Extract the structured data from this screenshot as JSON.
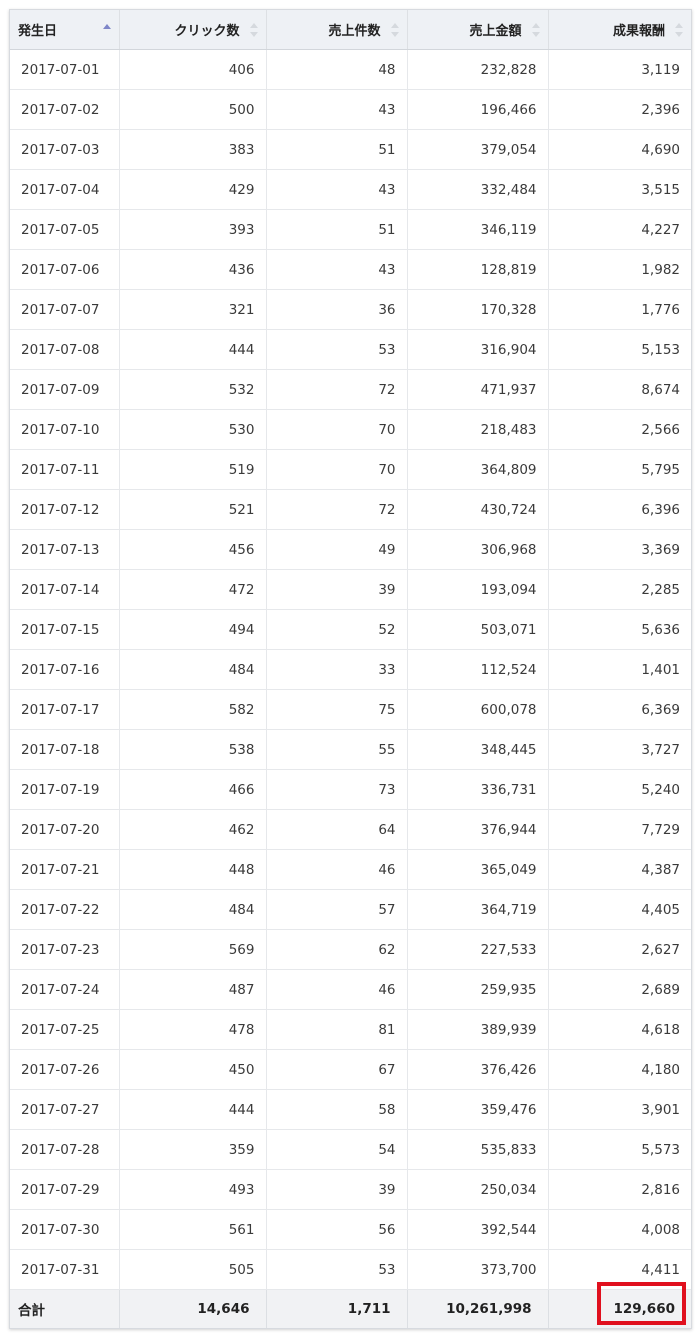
{
  "table": {
    "columns": [
      {
        "label": "発生日",
        "sort": "asc"
      },
      {
        "label": "クリック数",
        "sort": "none"
      },
      {
        "label": "売上件数",
        "sort": "none"
      },
      {
        "label": "売上金額",
        "sort": "none"
      },
      {
        "label": "成果報酬",
        "sort": "none"
      }
    ],
    "rows": [
      [
        "2017-07-01",
        "406",
        "48",
        "232,828",
        "3,119"
      ],
      [
        "2017-07-02",
        "500",
        "43",
        "196,466",
        "2,396"
      ],
      [
        "2017-07-03",
        "383",
        "51",
        "379,054",
        "4,690"
      ],
      [
        "2017-07-04",
        "429",
        "43",
        "332,484",
        "3,515"
      ],
      [
        "2017-07-05",
        "393",
        "51",
        "346,119",
        "4,227"
      ],
      [
        "2017-07-06",
        "436",
        "43",
        "128,819",
        "1,982"
      ],
      [
        "2017-07-07",
        "321",
        "36",
        "170,328",
        "1,776"
      ],
      [
        "2017-07-08",
        "444",
        "53",
        "316,904",
        "5,153"
      ],
      [
        "2017-07-09",
        "532",
        "72",
        "471,937",
        "8,674"
      ],
      [
        "2017-07-10",
        "530",
        "70",
        "218,483",
        "2,566"
      ],
      [
        "2017-07-11",
        "519",
        "70",
        "364,809",
        "5,795"
      ],
      [
        "2017-07-12",
        "521",
        "72",
        "430,724",
        "6,396"
      ],
      [
        "2017-07-13",
        "456",
        "49",
        "306,968",
        "3,369"
      ],
      [
        "2017-07-14",
        "472",
        "39",
        "193,094",
        "2,285"
      ],
      [
        "2017-07-15",
        "494",
        "52",
        "503,071",
        "5,636"
      ],
      [
        "2017-07-16",
        "484",
        "33",
        "112,524",
        "1,401"
      ],
      [
        "2017-07-17",
        "582",
        "75",
        "600,078",
        "6,369"
      ],
      [
        "2017-07-18",
        "538",
        "55",
        "348,445",
        "3,727"
      ],
      [
        "2017-07-19",
        "466",
        "73",
        "336,731",
        "5,240"
      ],
      [
        "2017-07-20",
        "462",
        "64",
        "376,944",
        "7,729"
      ],
      [
        "2017-07-21",
        "448",
        "46",
        "365,049",
        "4,387"
      ],
      [
        "2017-07-22",
        "484",
        "57",
        "364,719",
        "4,405"
      ],
      [
        "2017-07-23",
        "569",
        "62",
        "227,533",
        "2,627"
      ],
      [
        "2017-07-24",
        "487",
        "46",
        "259,935",
        "2,689"
      ],
      [
        "2017-07-25",
        "478",
        "81",
        "389,939",
        "4,618"
      ],
      [
        "2017-07-26",
        "450",
        "67",
        "376,426",
        "4,180"
      ],
      [
        "2017-07-27",
        "444",
        "58",
        "359,476",
        "3,901"
      ],
      [
        "2017-07-28",
        "359",
        "54",
        "535,833",
        "5,573"
      ],
      [
        "2017-07-29",
        "493",
        "39",
        "250,034",
        "2,816"
      ],
      [
        "2017-07-30",
        "561",
        "56",
        "392,544",
        "4,008"
      ],
      [
        "2017-07-31",
        "505",
        "53",
        "373,700",
        "4,411"
      ]
    ],
    "totals": [
      "合計",
      "14,646",
      "1,711",
      "10,261,998",
      "129,660"
    ]
  },
  "annotation": {
    "highlight_color": "#e0101e",
    "highlight_target": "total-reward"
  },
  "colors": {
    "header_bg": "#eef1f5",
    "footer_bg": "#f1f2f4",
    "sort_active": "#7e86c8"
  }
}
